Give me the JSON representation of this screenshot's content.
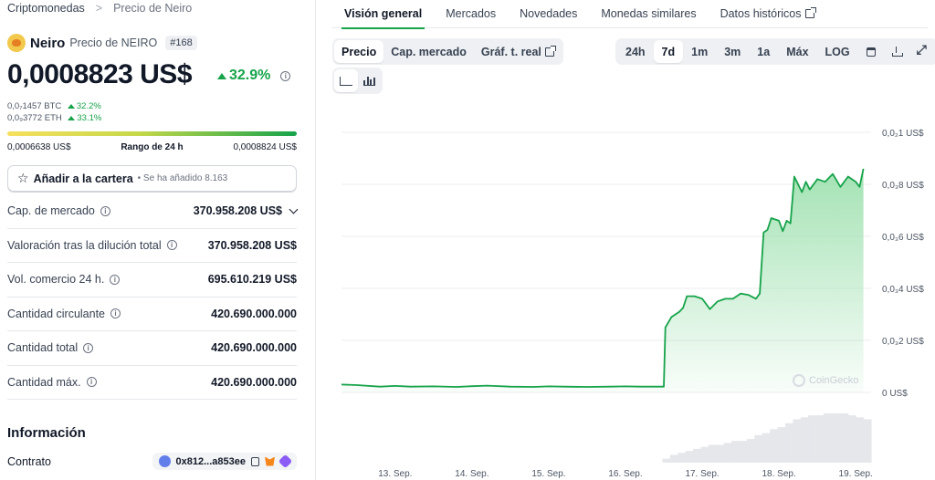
{
  "breadcrumb": {
    "root": "Criptomonedas",
    "separator": ">",
    "current": "Precio de Neiro"
  },
  "coin": {
    "name": "Neiro",
    "subtitle": "Precio de NEIRO",
    "rank": "#168"
  },
  "price": {
    "value": "0,0008823 US$",
    "change": "32.9%",
    "change_color": "#16a34a",
    "info_icon": "info-icon"
  },
  "sub_prices": [
    {
      "value": "0,0₇1457 BTC",
      "change": "32.2%"
    },
    {
      "value": "0,0₉3772 ETH",
      "change": "33.1%"
    }
  ],
  "range": {
    "low": "0,0006638 US$",
    "label": "Rango de 24 h",
    "high": "0,0008824 US$"
  },
  "portfolio": {
    "label": "Añadir a la cartera",
    "note": "• Se ha añadido 8.163"
  },
  "stats": [
    {
      "label": "Cap. de mercado",
      "value": "370.958.208 US$"
    },
    {
      "label": "Valoración tras la dilución total",
      "value": "370.958.208 US$"
    },
    {
      "label": "Vol. comercio 24 h.",
      "value": "695.610.219 US$"
    },
    {
      "label": "Cantidad circulante",
      "value": "420.690.000.000"
    },
    {
      "label": "Cantidad total",
      "value": "420.690.000.000"
    },
    {
      "label": "Cantidad máx.",
      "value": "420.690.000.000"
    }
  ],
  "info": {
    "title": "Información",
    "contract_label": "Contrato",
    "contract_value": "0x812...a853ee"
  },
  "tabs": [
    {
      "label": "Visión general",
      "active": true
    },
    {
      "label": "Mercados"
    },
    {
      "label": "Novedades"
    },
    {
      "label": "Monedas similares"
    },
    {
      "label": "Datos históricos"
    }
  ],
  "chart_controls": {
    "views": [
      "Precio",
      "Cap. mercado",
      "Gráf. t. real"
    ],
    "selected_view": "Precio",
    "ranges": [
      "24h",
      "7d",
      "1m",
      "3m",
      "1a",
      "Máx",
      "LOG"
    ],
    "selected_range": "7d"
  },
  "watermark": "CoinGecko",
  "colors": {
    "accent": "#16a34a",
    "line": "#16a34a",
    "area_top": "#86d99b",
    "volume": "#e5e7eb"
  },
  "chart_data": {
    "type": "line",
    "y_unit": "US$",
    "y_ticks": [
      {
        "value": 0,
        "label": "0 US$"
      },
      {
        "value": 0.0002,
        "label": "0,0₃2 US$"
      },
      {
        "value": 0.0004,
        "label": "0,0₃4 US$"
      },
      {
        "value": 0.0006,
        "label": "0,0₃6 US$"
      },
      {
        "value": 0.0008,
        "label": "0,0₃8 US$"
      },
      {
        "value": 0.001,
        "label": "0,0₂1 US$"
      }
    ],
    "ylim": [
      0,
      0.001
    ],
    "x_ticks": [
      {
        "day": 13,
        "label": "13. Sep."
      },
      {
        "day": 14,
        "label": "14. Sep."
      },
      {
        "day": 15,
        "label": "15. Sep."
      },
      {
        "day": 16,
        "label": "16. Sep."
      },
      {
        "day": 17,
        "label": "17. Sep."
      },
      {
        "day": 18,
        "label": "18. Sep."
      },
      {
        "day": 19,
        "label": "19. Sep."
      }
    ],
    "xlim": [
      12.3,
      19.2
    ],
    "grid": true,
    "series": [
      {
        "x": [
          12.3,
          12.5,
          12.8,
          13.0,
          13.2,
          13.5,
          13.8,
          14.0,
          14.2,
          14.5,
          14.8,
          15.0,
          15.2,
          15.5,
          15.8,
          16.0,
          16.2,
          16.45,
          16.5,
          16.52,
          16.6,
          16.7,
          16.75,
          16.8,
          16.9,
          17.0,
          17.1,
          17.2,
          17.3,
          17.4,
          17.5,
          17.6,
          17.7,
          17.75,
          17.8,
          17.85,
          17.9,
          18.0,
          18.05,
          18.1,
          18.15,
          18.2,
          18.3,
          18.35,
          18.4,
          18.5,
          18.6,
          18.7,
          18.8,
          18.9,
          19.0,
          19.05,
          19.1
        ],
        "y": [
          3e-05,
          2.8e-05,
          2.2e-05,
          2.5e-05,
          2.2e-05,
          2.3e-05,
          2.1e-05,
          2.4e-05,
          2.6e-05,
          2.2e-05,
          2.1e-05,
          2.3e-05,
          2.2e-05,
          2.1e-05,
          2.2e-05,
          2.3e-05,
          2.2e-05,
          2.2e-05,
          2.2e-05,
          0.00025,
          0.00029,
          0.00031,
          0.000325,
          0.00037,
          0.00037,
          0.00036,
          0.00032,
          0.00035,
          0.00036,
          0.00036,
          0.00038,
          0.000375,
          0.00036,
          0.00038,
          0.000615,
          0.000625,
          0.00067,
          0.00066,
          0.00062,
          0.00066,
          0.00065,
          0.00083,
          0.00077,
          0.00081,
          0.00078,
          0.00082,
          0.00081,
          0.00084,
          0.00079,
          0.00083,
          0.00081,
          0.00079,
          0.00086
        ]
      }
    ],
    "volume_series": {
      "x": [
        16.6,
        16.7,
        16.8,
        16.9,
        17.0,
        17.1,
        17.2,
        17.3,
        17.4,
        17.5,
        17.6,
        17.7,
        17.8,
        17.9,
        18.0,
        18.1,
        18.2,
        18.3,
        18.4,
        18.5,
        18.6,
        18.7,
        18.8,
        18.9,
        19.0,
        19.1
      ],
      "y": [
        2,
        4,
        5,
        6,
        7,
        8,
        9,
        9,
        10,
        11,
        11,
        12,
        14,
        15,
        17,
        18,
        20,
        22,
        23,
        24,
        24,
        25,
        25,
        24,
        23,
        22
      ]
    }
  }
}
